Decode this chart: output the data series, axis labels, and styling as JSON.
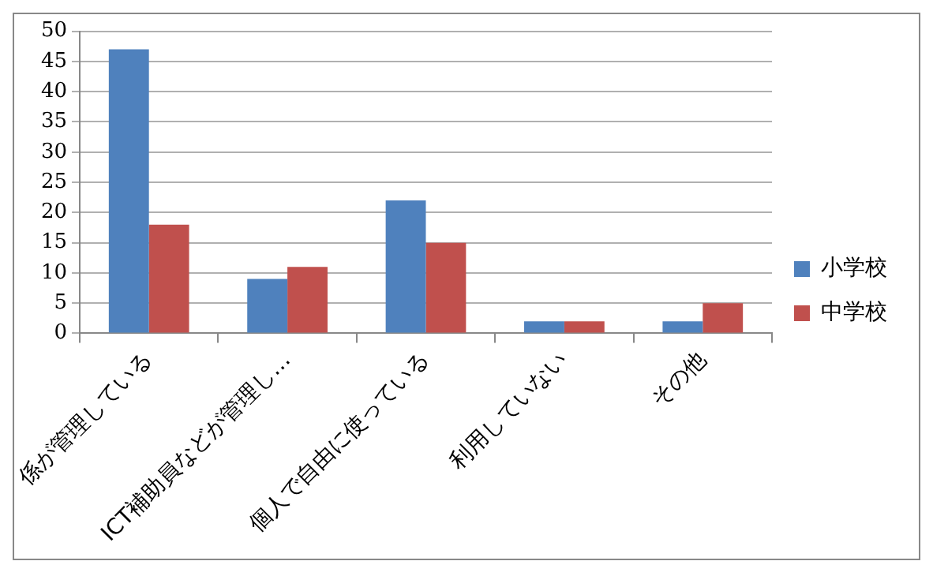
{
  "chart_data": {
    "type": "bar",
    "categories": [
      "係が管理している",
      "ICT補助員などが管理し…",
      "個人で自由に使っている",
      "利用していない",
      "その他"
    ],
    "series": [
      {
        "name": "小学校",
        "color": "#4f81bd",
        "values": [
          47,
          9,
          22,
          2,
          2
        ]
      },
      {
        "name": "中学校",
        "color": "#c0504d",
        "values": [
          18,
          11,
          15,
          2,
          5
        ]
      }
    ],
    "ylim": [
      0,
      50
    ],
    "yticks": [
      0,
      5,
      10,
      15,
      20,
      25,
      30,
      35,
      40,
      45,
      50
    ],
    "grid": "y",
    "legend": "right"
  }
}
